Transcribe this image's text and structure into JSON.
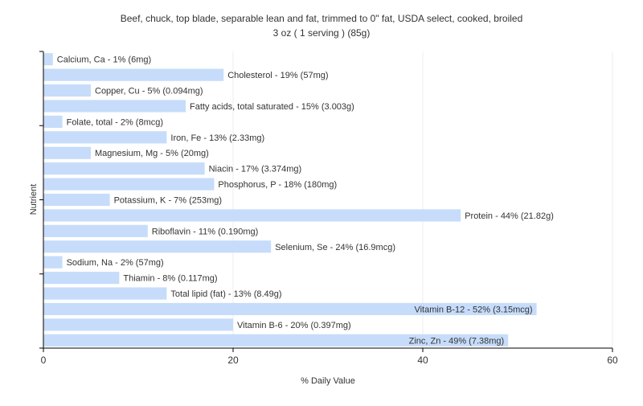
{
  "chart_data": {
    "type": "bar",
    "orientation": "horizontal",
    "title": "Beef, chuck, top blade, separable lean and fat, trimmed to 0\" fat, USDA select, cooked, broiled",
    "subtitle": "3 oz ( 1 serving ) (85g)",
    "xlabel": "% Daily Value",
    "ylabel": "Nutrient",
    "xlim": [
      0,
      60
    ],
    "xticks": [
      0,
      20,
      40,
      60
    ],
    "grid": true,
    "bar_color": "#c6dcfa",
    "grid_color": "#ececec",
    "categories": [
      "Calcium, Ca",
      "Cholesterol",
      "Copper, Cu",
      "Fatty acids, total saturated",
      "Folate, total",
      "Iron, Fe",
      "Magnesium, Mg",
      "Niacin",
      "Phosphorus, P",
      "Potassium, K",
      "Protein",
      "Riboflavin",
      "Selenium, Se",
      "Sodium, Na",
      "Thiamin",
      "Total lipid (fat)",
      "Vitamin B-12",
      "Vitamin B-6",
      "Zinc, Zn"
    ],
    "values": [
      1,
      19,
      5,
      15,
      2,
      13,
      5,
      17,
      18,
      7,
      44,
      11,
      24,
      2,
      8,
      13,
      52,
      20,
      49
    ],
    "labels": [
      "Calcium, Ca - 1% (6mg)",
      "Cholesterol - 19% (57mg)",
      "Copper, Cu - 5% (0.094mg)",
      "Fatty acids, total saturated - 15% (3.003g)",
      "Folate, total - 2% (8mcg)",
      "Iron, Fe - 13% (2.33mg)",
      "Magnesium, Mg - 5% (20mg)",
      "Niacin - 17% (3.374mg)",
      "Phosphorus, P - 18% (180mg)",
      "Potassium, K - 7% (253mg)",
      "Protein - 44% (21.82g)",
      "Riboflavin - 11% (0.190mg)",
      "Selenium, Se - 24% (16.9mcg)",
      "Sodium, Na - 2% (57mg)",
      "Thiamin - 8% (0.117mg)",
      "Total lipid (fat) - 13% (8.49g)",
      "Vitamin B-12 - 52% (3.15mcg)",
      "Vitamin B-6 - 20% (0.397mg)",
      "Zinc, Zn - 49% (7.38mg)"
    ]
  }
}
